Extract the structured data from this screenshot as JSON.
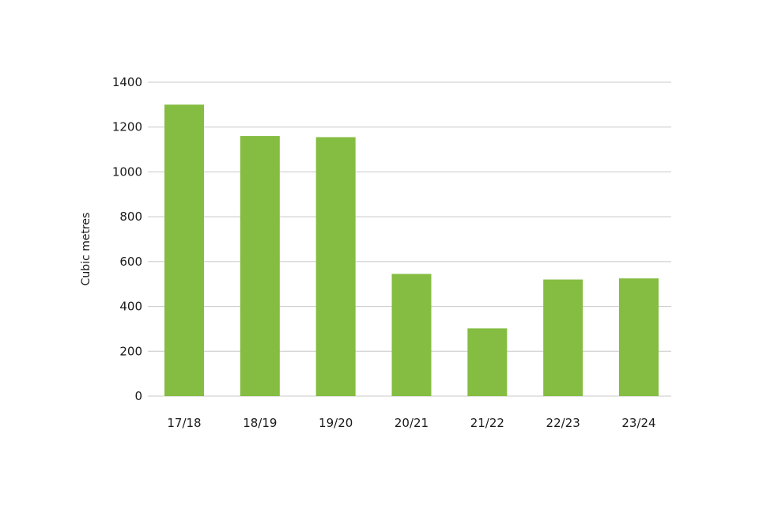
{
  "chart_data": {
    "type": "bar",
    "categories": [
      "17/18",
      "18/19",
      "19/20",
      "20/21",
      "21/22",
      "22/23",
      "23/24"
    ],
    "values": [
      1300,
      1160,
      1155,
      545,
      302,
      520,
      525
    ],
    "ylabel": "Cubic metres",
    "xlabel": "",
    "ylim": [
      0,
      1400
    ],
    "yticks": [
      0,
      200,
      400,
      600,
      800,
      1000,
      1200,
      1400
    ],
    "grid": true,
    "bar_color": "#84bd41"
  }
}
